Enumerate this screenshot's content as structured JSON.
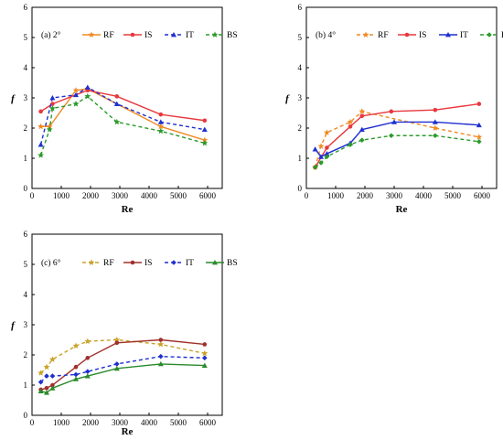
{
  "chart_data": [
    {
      "type": "line",
      "panel_label": "(a) 2°",
      "xlabel": "Re",
      "ylabel": "f",
      "xlim": [
        0,
        6500
      ],
      "ylim": [
        0,
        6
      ],
      "xticks": [
        0,
        1000,
        2000,
        3000,
        4000,
        5000,
        6000
      ],
      "yticks": [
        0,
        1,
        2,
        3,
        4,
        5,
        6
      ],
      "legend": "top",
      "series": [
        {
          "name": "RF",
          "color": "#f08a24",
          "marker": "star",
          "dash": "solid",
          "x": [
            300,
            600,
            1500,
            1900,
            4400,
            5900
          ],
          "y": [
            2.05,
            2.05,
            3.25,
            3.3,
            2.05,
            1.6
          ]
        },
        {
          "name": "IS",
          "color": "#e8383d",
          "marker": "circle",
          "dash": "solid",
          "x": [
            300,
            700,
            1900,
            2900,
            4400,
            5900
          ],
          "y": [
            2.55,
            2.8,
            3.25,
            3.05,
            2.45,
            2.25
          ]
        },
        {
          "name": "IT",
          "color": "#1f2fd0",
          "marker": "triangle",
          "dash": "dashed",
          "x": [
            300,
            700,
            1500,
            1900,
            2900,
            4400,
            5900
          ],
          "y": [
            1.45,
            3.0,
            3.1,
            3.35,
            2.8,
            2.2,
            1.95
          ]
        },
        {
          "name": "BS",
          "color": "#2a9a2a",
          "marker": "star",
          "dash": "dashed",
          "x": [
            300,
            600,
            700,
            1500,
            1900,
            2900,
            4400,
            5900
          ],
          "y": [
            1.1,
            1.95,
            2.65,
            2.8,
            3.05,
            2.2,
            1.9,
            1.5
          ]
        }
      ]
    },
    {
      "type": "line",
      "panel_label": "(b) 4°",
      "xlabel": "Re",
      "ylabel": "f",
      "xlim": [
        0,
        6500
      ],
      "ylim": [
        0,
        6
      ],
      "xticks": [
        0,
        1000,
        2000,
        3000,
        4000,
        5000,
        6000
      ],
      "yticks": [
        0,
        1,
        2,
        3,
        4,
        5,
        6
      ],
      "legend": "top",
      "series": [
        {
          "name": "RF",
          "color": "#f08a24",
          "marker": "star",
          "dash": "dashed",
          "x": [
            300,
            500,
            700,
            1500,
            1900,
            4400,
            5900
          ],
          "y": [
            0.7,
            1.4,
            1.85,
            2.2,
            2.55,
            2.0,
            1.7
          ]
        },
        {
          "name": "IS",
          "color": "#e8383d",
          "marker": "circle",
          "dash": "solid",
          "x": [
            300,
            700,
            1500,
            1900,
            2900,
            4400,
            5900
          ],
          "y": [
            0.7,
            1.35,
            2.05,
            2.4,
            2.55,
            2.6,
            2.8
          ]
        },
        {
          "name": "IT",
          "color": "#1f2fd0",
          "marker": "triangle",
          "dash": "solid",
          "x": [
            300,
            500,
            700,
            1500,
            1900,
            3000,
            4400,
            5900
          ],
          "y": [
            1.3,
            1.05,
            1.15,
            1.5,
            1.95,
            2.2,
            2.2,
            2.1
          ]
        },
        {
          "name": "BS",
          "color": "#2a9a2a",
          "marker": "diamond",
          "dash": "dashed",
          "x": [
            300,
            500,
            700,
            1500,
            1900,
            2900,
            4400,
            5900
          ],
          "y": [
            0.7,
            0.85,
            1.05,
            1.45,
            1.6,
            1.75,
            1.75,
            1.55
          ]
        }
      ]
    },
    {
      "type": "line",
      "panel_label": "(c) 6°",
      "xlabel": "Re",
      "ylabel": "f",
      "xlim": [
        0,
        6500
      ],
      "ylim": [
        0,
        6
      ],
      "xticks": [
        0,
        1000,
        2000,
        3000,
        4000,
        5000,
        6000
      ],
      "yticks": [
        0,
        1,
        2,
        3,
        4,
        5,
        6
      ],
      "legend": "top",
      "series": [
        {
          "name": "RF",
          "color": "#c9a227",
          "marker": "star",
          "dash": "dashed",
          "x": [
            300,
            500,
            700,
            1500,
            1900,
            2900,
            4400,
            5900
          ],
          "y": [
            1.4,
            1.6,
            1.85,
            2.3,
            2.45,
            2.5,
            2.35,
            2.05
          ]
        },
        {
          "name": "IS",
          "color": "#a0302c",
          "marker": "circle",
          "dash": "solid",
          "x": [
            300,
            500,
            700,
            1500,
            1900,
            2900,
            4400,
            5900
          ],
          "y": [
            0.85,
            0.9,
            1.0,
            1.6,
            1.9,
            2.4,
            2.5,
            2.35
          ]
        },
        {
          "name": "IT",
          "color": "#1f2fd0",
          "marker": "diamond",
          "dash": "dashed",
          "x": [
            300,
            500,
            700,
            1500,
            1900,
            2900,
            4400,
            5900
          ],
          "y": [
            1.1,
            1.3,
            1.3,
            1.35,
            1.45,
            1.7,
            1.95,
            1.9
          ]
        },
        {
          "name": "BS",
          "color": "#2a8a2a",
          "marker": "triangle",
          "dash": "solid",
          "x": [
            300,
            500,
            700,
            1500,
            1900,
            2900,
            4400,
            5900
          ],
          "y": [
            0.8,
            0.75,
            0.9,
            1.2,
            1.3,
            1.55,
            1.7,
            1.65
          ]
        }
      ]
    }
  ]
}
